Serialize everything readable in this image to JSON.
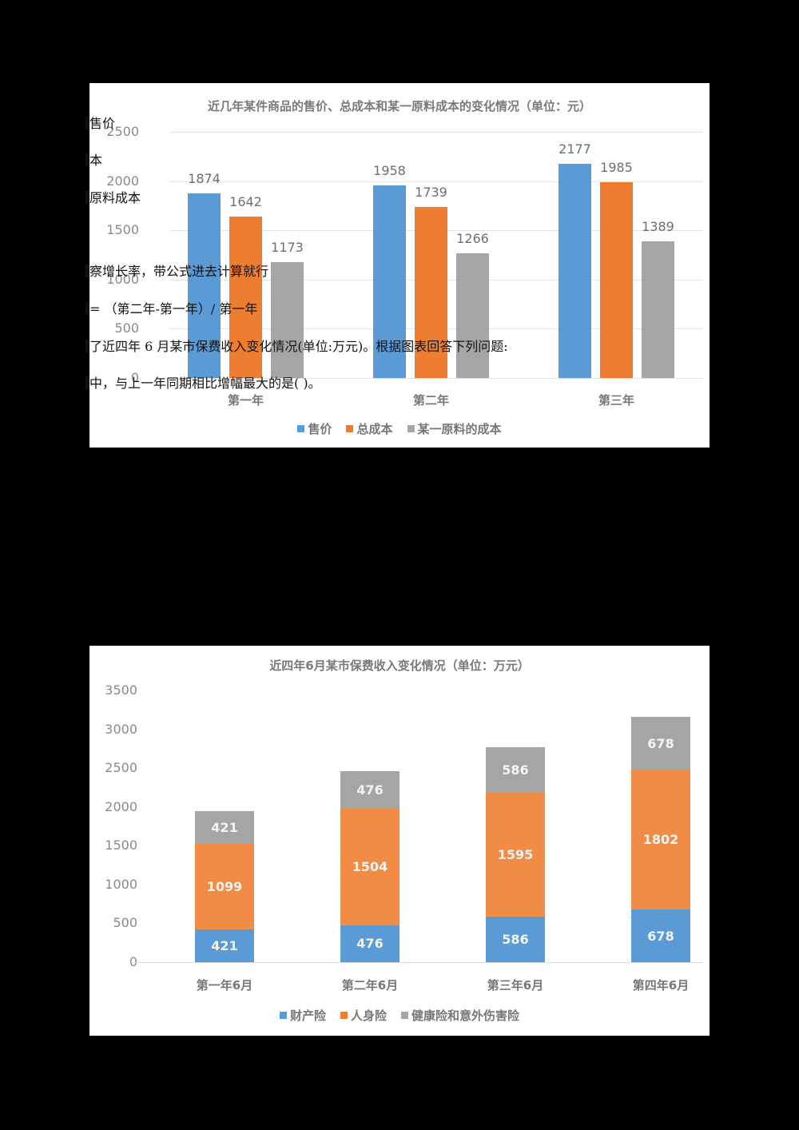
{
  "chart_data": [
    {
      "type": "bar",
      "title": "近几年某件商品的售价、总成本和某一原料成本的变化情况（单位：元）",
      "categories": [
        "第一年",
        "第二年",
        "第三年"
      ],
      "series": [
        {
          "name": "售价",
          "color": "#5b9bd5",
          "values": [
            1874,
            1958,
            2177
          ]
        },
        {
          "name": "总成本",
          "color": "#ed7d31",
          "values": [
            1642,
            1739,
            1985
          ]
        },
        {
          "name": "某一原料的成本",
          "color": "#a5a5a5",
          "values": [
            1173,
            1266,
            1389
          ]
        }
      ],
      "yticks": [
        "2500",
        "2000",
        "1500",
        "1000",
        "500",
        "0"
      ],
      "ylim": [
        0,
        2500
      ],
      "xlabel": "",
      "ylabel": "",
      "grid": true,
      "legend_position": "bottom"
    },
    {
      "type": "bar",
      "stacked": true,
      "title": "近四年6月某市保费收入变化情况（单位：万元）",
      "categories": [
        "第一年6月",
        "第二年6月",
        "第三年6月",
        "第四年6月"
      ],
      "series": [
        {
          "name": "财产险",
          "color": "#5b9bd5",
          "values": [
            421,
            476,
            586,
            678
          ]
        },
        {
          "name": "人身险",
          "color": "#ed7d31",
          "values": [
            1099,
            1504,
            1595,
            1802
          ]
        },
        {
          "name": "健康险和意外伤害险",
          "color": "#a5a5a5",
          "values": [
            421,
            476,
            586,
            678
          ]
        }
      ],
      "yticks": [
        "3500",
        "3000",
        "2500",
        "2000",
        "1500",
        "1000",
        "500",
        "0"
      ],
      "ylim": [
        0,
        3500
      ],
      "xlabel": "",
      "ylabel": "",
      "grid": false,
      "legend_position": "bottom"
    }
  ],
  "overlay_text": [
    "售价",
    "本",
    "原料成本",
    "察增长率，带公式进去计算就行",
    "=  （第二年-第一年）/ 第一年",
    "了近四年  6  月某市保费收入变化情况(单位:万元)。根据图表回答下列问题:",
    "中，与上一年同期相比增幅最大的是( )。"
  ]
}
